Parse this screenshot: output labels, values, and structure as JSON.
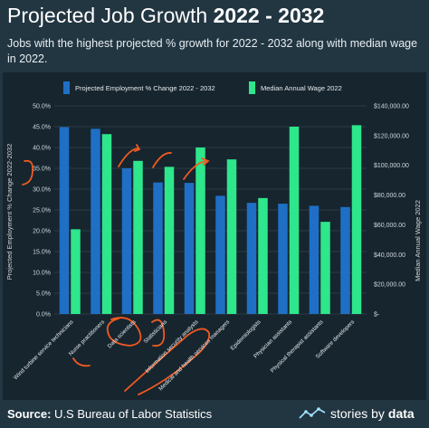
{
  "header": {
    "title_main": "Projected Job Growth ",
    "title_bold": "2022 - 2032",
    "subtitle": "Jobs with the highest projected % growth for 2022 - 2032 along with median wage in 2022."
  },
  "footer": {
    "source_label": "Source:",
    "source_text": "U.S Bureau of Labor Statistics",
    "brand_1": "stories by",
    "brand_2": "data",
    "brand_icon": "line-chart-icon"
  },
  "chart_data": {
    "type": "bar",
    "categories": [
      "Wind turbine service technicians",
      "Nurse practitioners",
      "Data scientists",
      "Statisticians",
      "Information security analysts",
      "Medical and health services managers",
      "Epidemiologists",
      "Physician assistants",
      "Physical therapist assistants",
      "Software developers"
    ],
    "series": [
      {
        "name": "Projected Employment % Change 2022 - 2032",
        "axis": "left",
        "color": "#1f6fc5",
        "values": [
          44.9,
          44.5,
          35.0,
          31.6,
          31.5,
          28.4,
          26.7,
          26.5,
          26.0,
          25.7
        ]
      },
      {
        "name": "Median Annual Wage 2022",
        "axis": "right",
        "color": "#2ee68b",
        "values": [
          57000,
          121000,
          103000,
          99000,
          112000,
          104000,
          78000,
          126000,
          62000,
          127000
        ]
      }
    ],
    "ylabel": "Projected Employment % Change 2022-2032",
    "ylabel_right": "Median Annual Wage 2022",
    "ylim": [
      0,
      50
    ],
    "ylim_right": [
      0,
      140000
    ],
    "yticks": [
      "0.0%",
      "5.0%",
      "10.0%",
      "15.0%",
      "20.0%",
      "25.0%",
      "30.0%",
      "35.0%",
      "40.0%",
      "45.0%",
      "50.0%"
    ],
    "yticks_right": [
      "$-",
      "$20,000.00",
      "$40,000.00",
      "$60,000.00",
      "$80,000.00",
      "$100,000.00",
      "$120,000.00",
      "$140,000.00"
    ],
    "grid": true,
    "legend": "top"
  }
}
